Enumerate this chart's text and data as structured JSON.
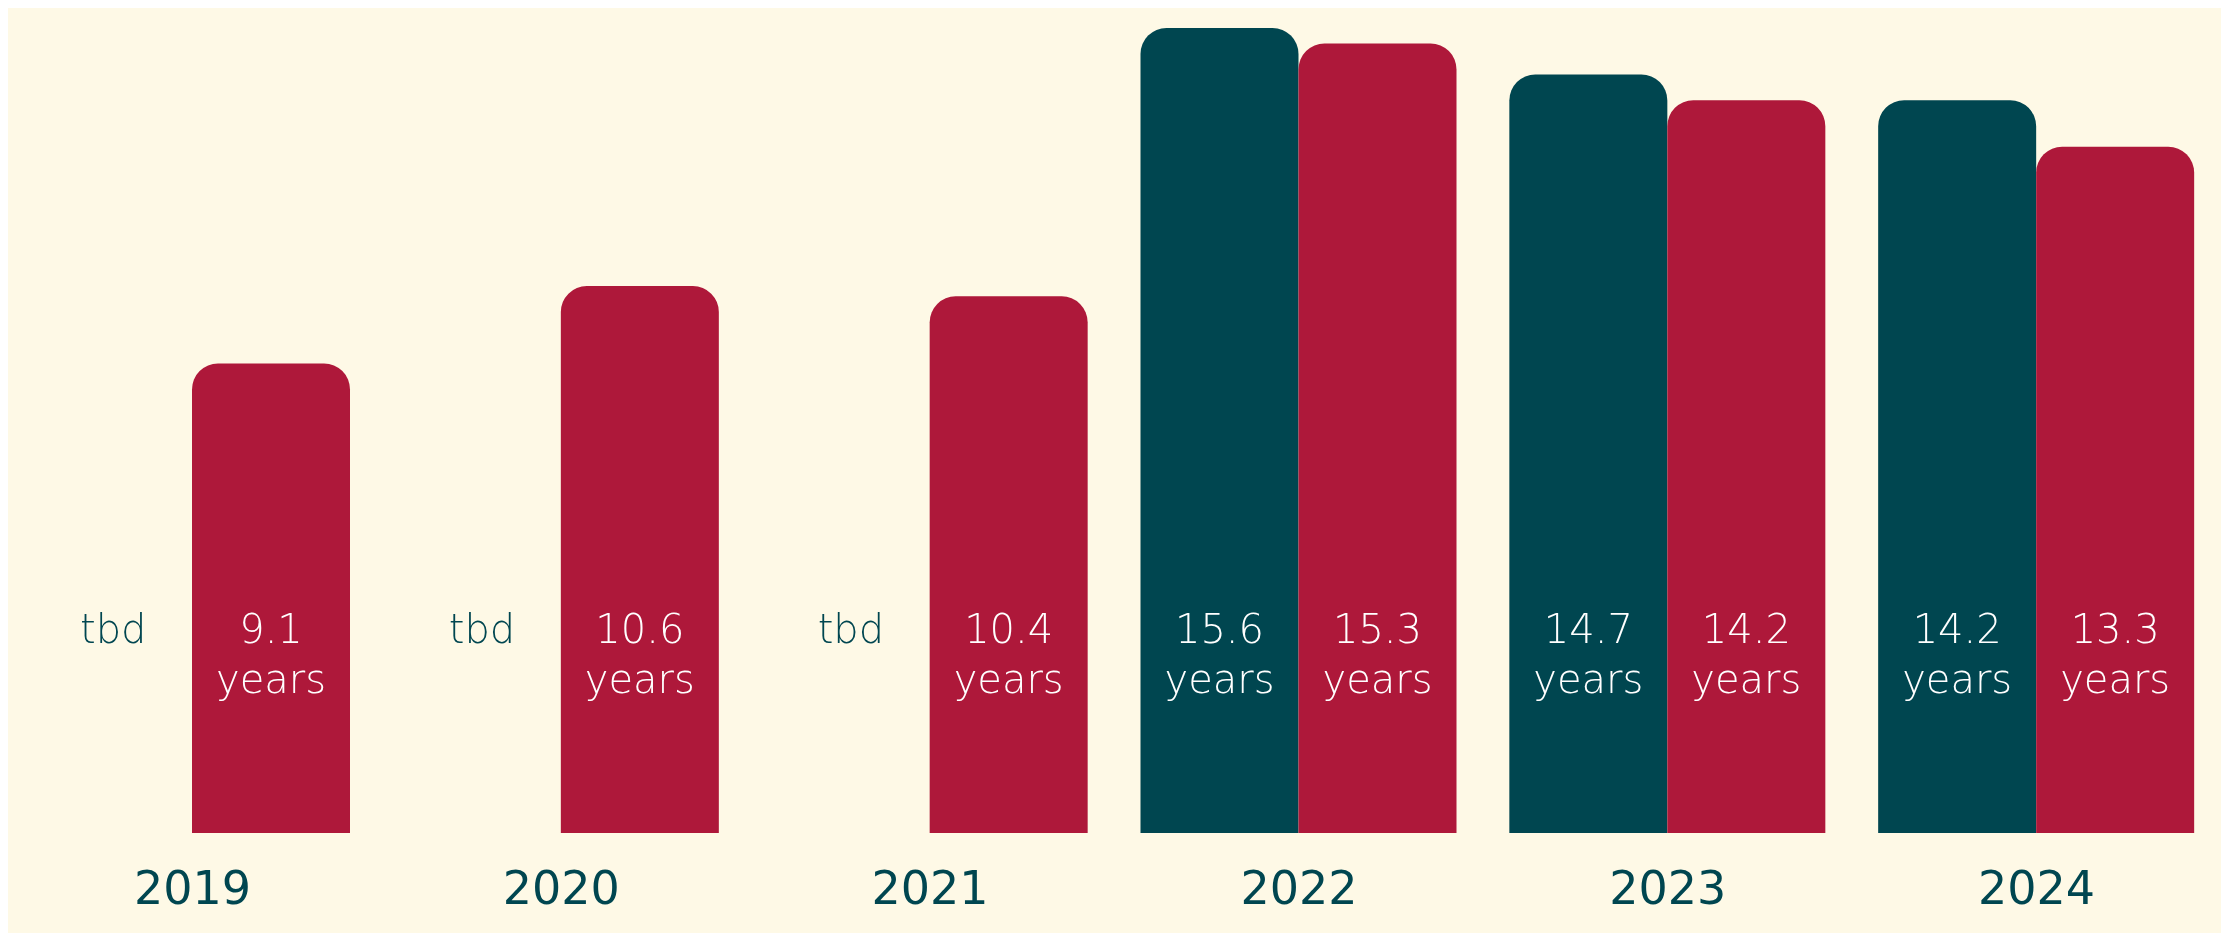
{
  "chart_data": {
    "type": "bar",
    "categories": [
      "2019",
      "2020",
      "2021",
      "2022",
      "2023",
      "2024"
    ],
    "series": [
      {
        "color": "#004650",
        "values": [
          null,
          null,
          null,
          15.6,
          14.7,
          14.2
        ],
        "value_labels": [
          "tbd",
          "tbd",
          "tbd",
          "15.6 years",
          "14.7 years",
          "14.2 years"
        ]
      },
      {
        "color": "#ae183a",
        "values": [
          9.1,
          10.6,
          10.4,
          15.3,
          14.2,
          13.3
        ],
        "value_labels": [
          "9.1 years",
          "10.6 years",
          "10.4 years",
          "15.3 years",
          "14.2 years",
          "13.3 years"
        ]
      }
    ],
    "legend": false,
    "grid": false
  }
}
